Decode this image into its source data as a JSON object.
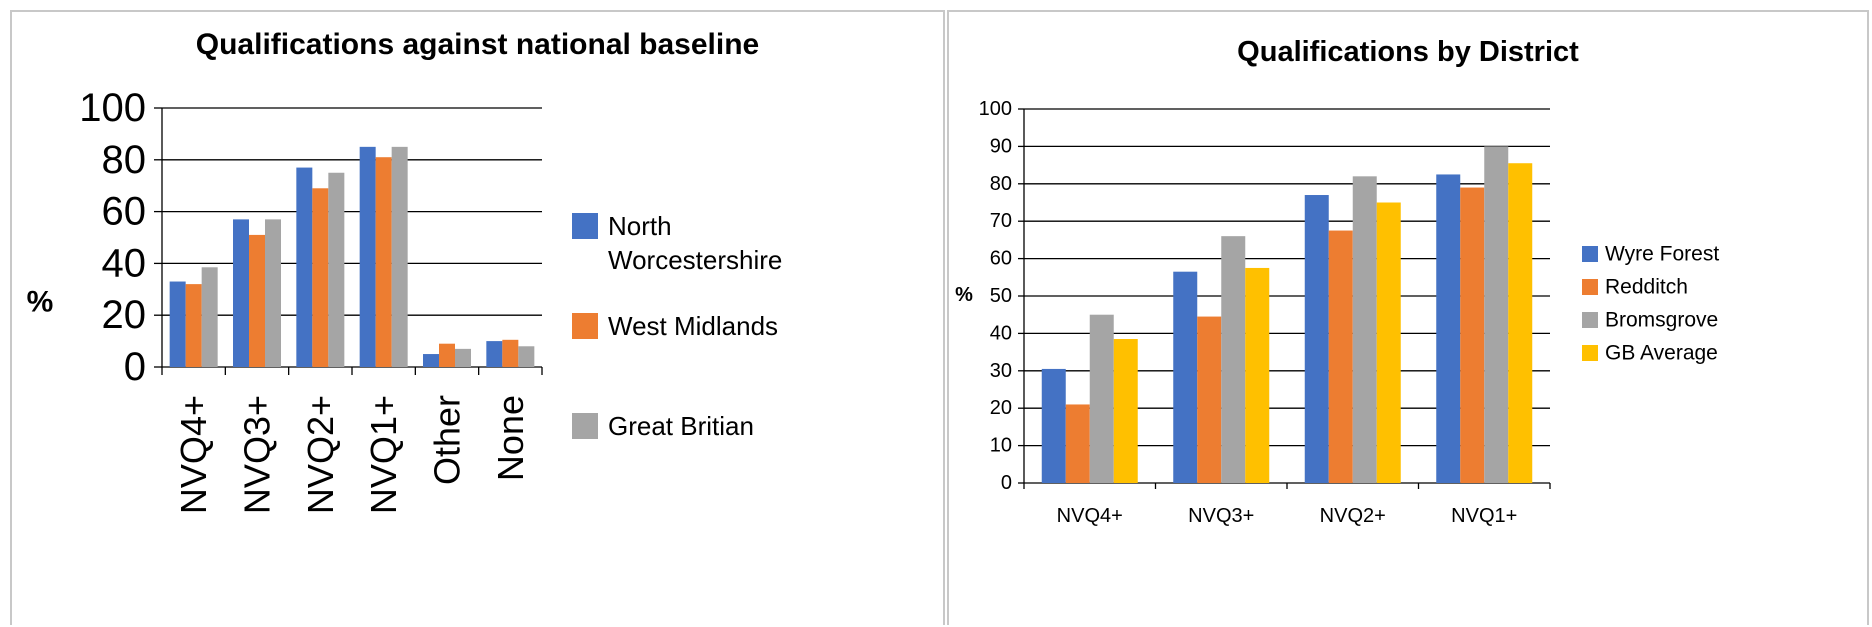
{
  "chart_data": [
    {
      "type": "bar",
      "title": "Qualifications against national baseline",
      "ylabel": "%",
      "xlabel": "",
      "ylim": [
        0,
        100
      ],
      "yticks": [
        0,
        20,
        40,
        60,
        80,
        100
      ],
      "grid": true,
      "legend_position": "right",
      "categories": [
        "NVQ4+",
        "NVQ3+",
        "NVQ2+",
        "NVQ1+",
        "Other",
        "None"
      ],
      "series": [
        {
          "name": "North Worcestershire",
          "color": "#4472C4",
          "values": [
            33,
            57,
            77,
            85,
            5,
            10
          ]
        },
        {
          "name": "West Midlands",
          "color": "#ED7D31",
          "values": [
            32,
            51,
            69,
            81,
            9,
            10.5
          ]
        },
        {
          "name": "Great Britian",
          "color": "#A5A5A5",
          "values": [
            38.5,
            57,
            75,
            85,
            7,
            8
          ]
        }
      ]
    },
    {
      "type": "bar",
      "title": "Qualifications by District",
      "ylabel": "%",
      "xlabel": "",
      "ylim": [
        0,
        100
      ],
      "yticks": [
        0,
        10,
        20,
        30,
        40,
        50,
        60,
        70,
        80,
        90,
        100
      ],
      "grid": true,
      "legend_position": "right",
      "categories": [
        "NVQ4+",
        "NVQ3+",
        "NVQ2+",
        "NVQ1+"
      ],
      "series": [
        {
          "name": "Wyre Forest",
          "color": "#4472C4",
          "values": [
            30.5,
            56.5,
            77,
            82.5
          ]
        },
        {
          "name": "Redditch",
          "color": "#ED7D31",
          "values": [
            21,
            44.5,
            67.5,
            79
          ]
        },
        {
          "name": "Bromsgrove",
          "color": "#A5A5A5",
          "values": [
            45,
            66,
            82,
            90
          ]
        },
        {
          "name": "GB Average",
          "color": "#FFC000",
          "values": [
            38.5,
            57.5,
            75,
            85.5
          ]
        }
      ]
    }
  ]
}
